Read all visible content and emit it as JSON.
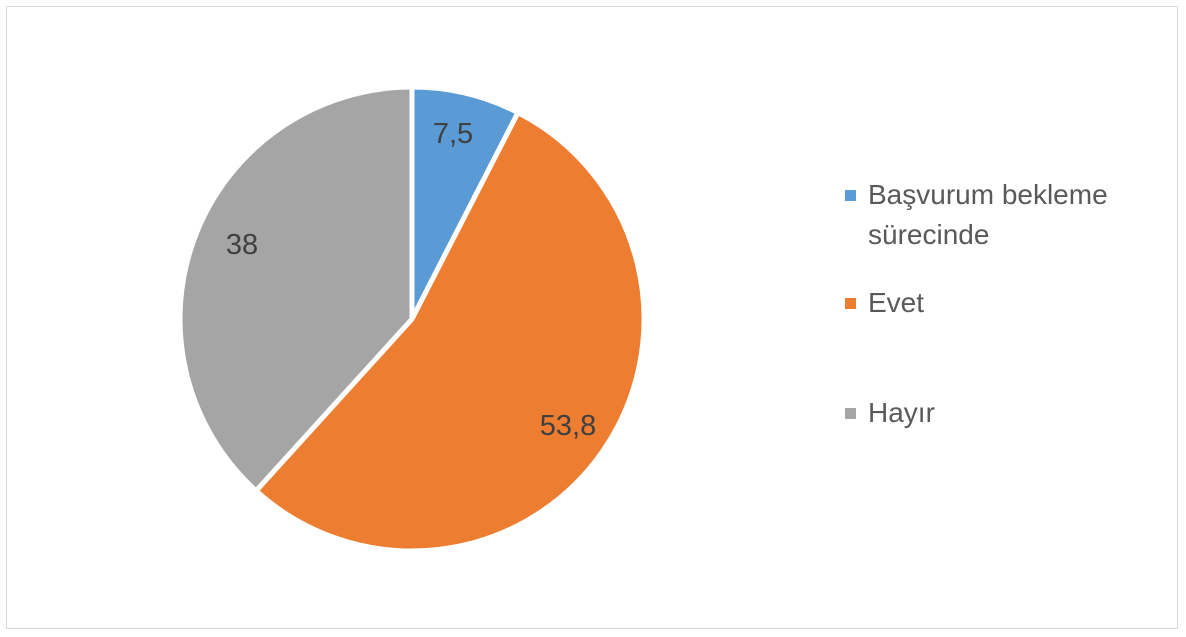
{
  "chart_data": {
    "type": "pie",
    "title": "",
    "categories": [
      "Başvurum bekleme sürecinde",
      "Evet",
      "Hayır"
    ],
    "values": [
      7.5,
      53.8,
      38
    ],
    "value_labels": [
      "7,5",
      "53,8",
      "38"
    ],
    "colors": [
      "#5b9bd5",
      "#ed7d31",
      "#a5a5a5"
    ],
    "legend_position": "right",
    "start_angle_deg": 0,
    "direction": "clockwise"
  }
}
